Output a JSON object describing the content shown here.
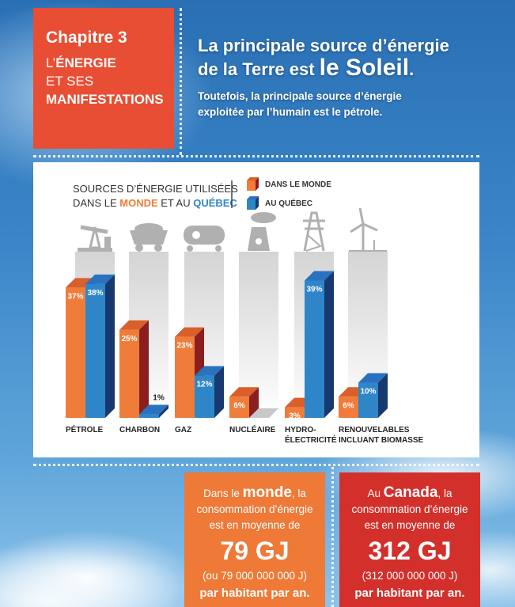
{
  "chapter": {
    "title": "Chapitre 3",
    "line1_prefix": "L’",
    "line1_bold": "ÉNERGIE",
    "line2": "ET SES",
    "line3": "MANIFESTATIONS"
  },
  "headline": {
    "line1": "La principale source d’énergie",
    "line2_prefix": "de la Terre est ",
    "line2_big": "le Soleil",
    "line2_suffix": ".",
    "sub1": "Toutefois, la principale source d’énergie",
    "sub2": "exploitée par l’humain est le pétrole."
  },
  "chart_data": {
    "type": "bar",
    "title_line1": "SOURCES D’ÉNERGIE UTILISÉES",
    "title_line2_a": "DANS LE ",
    "title_line2_b": "MONDE",
    "title_line2_c": " ET AU ",
    "title_line2_d": "QUÉBEC",
    "categories": [
      "PÉTROLE",
      "CHARBON",
      "GAZ",
      "NUCLÉAIRE",
      "HYDRO-\nÉLECTRICITÉ",
      "RENOUVELABLES\nINCLUANT BIOMASSE"
    ],
    "category_icons": [
      "oil-pump-icon",
      "coal-cart-icon",
      "gas-tanker-icon",
      "nuclear-plant-icon",
      "power-pylon-icon",
      "wind-turbine-icon"
    ],
    "series": [
      {
        "name": "DANS LE MONDE",
        "color": "#f07c39",
        "values": [
          37,
          25,
          23,
          6,
          3,
          6
        ],
        "labels": [
          "37%",
          "25%",
          "23%",
          "6%",
          "3%",
          "6%"
        ]
      },
      {
        "name": "AU QUÉBEC",
        "color": "#2e86c8",
        "values": [
          38,
          1,
          12,
          0,
          39,
          10
        ],
        "labels": [
          "38%",
          "1%",
          "12%",
          "",
          "39%",
          "10%"
        ]
      }
    ],
    "ylim": [
      0,
      40
    ],
    "legend": "top"
  },
  "boxes": [
    {
      "pre": "Dans le ",
      "bold": "monde",
      "post": ", la",
      "l2": "consommation d’énergie",
      "l3": "est en moyenne de",
      "gj": "79 GJ",
      "paren": "(ou 79 000 000 000 J)",
      "end": "par habitant par an.",
      "color": "#ef7a38"
    },
    {
      "pre": "Au ",
      "bold": "Canada",
      "post": ", la",
      "l2": "consommation d’énergie",
      "l3": "est en moyenne de",
      "gj": "312 GJ",
      "paren": "(312 000 000 000 J)",
      "end": "par habitant par an.",
      "color": "#d3302c"
    }
  ]
}
